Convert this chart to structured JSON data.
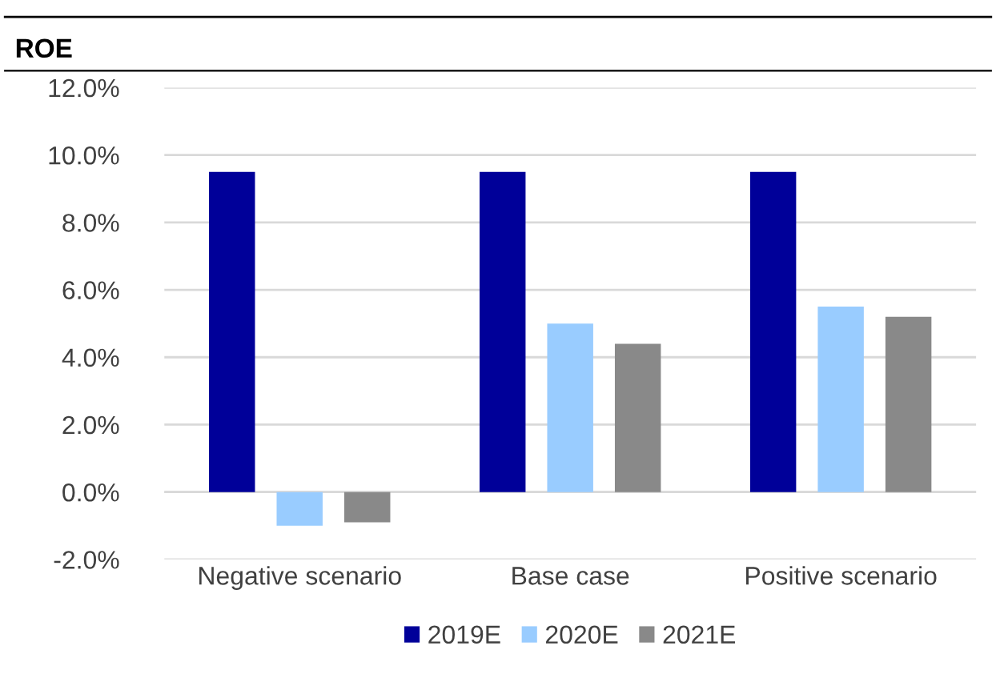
{
  "chart_data": {
    "type": "bar",
    "title": "ROE",
    "categories": [
      "Negative scenario",
      "Base case",
      "Positive scenario"
    ],
    "series": [
      {
        "name": "2019E",
        "color": "#000099",
        "values": [
          9.5,
          9.5,
          9.5
        ]
      },
      {
        "name": "2020E",
        "color": "#99ccff",
        "values": [
          -1.0,
          5.0,
          5.5
        ]
      },
      {
        "name": "2021E",
        "color": "#898989",
        "values": [
          -0.9,
          4.4,
          5.2
        ]
      }
    ],
    "ylim": [
      -2,
      12
    ],
    "yticks": [
      {
        "value": -2,
        "label": "-2.0%"
      },
      {
        "value": 0,
        "label": "0.0%"
      },
      {
        "value": 2,
        "label": "2.0%"
      },
      {
        "value": 4,
        "label": "4.0%"
      },
      {
        "value": 6,
        "label": "6.0%"
      },
      {
        "value": 8,
        "label": "8.0%"
      },
      {
        "value": 10,
        "label": "10.0%"
      },
      {
        "value": 12,
        "label": "12.0%"
      }
    ],
    "grid": "y",
    "legend": "bottom"
  }
}
